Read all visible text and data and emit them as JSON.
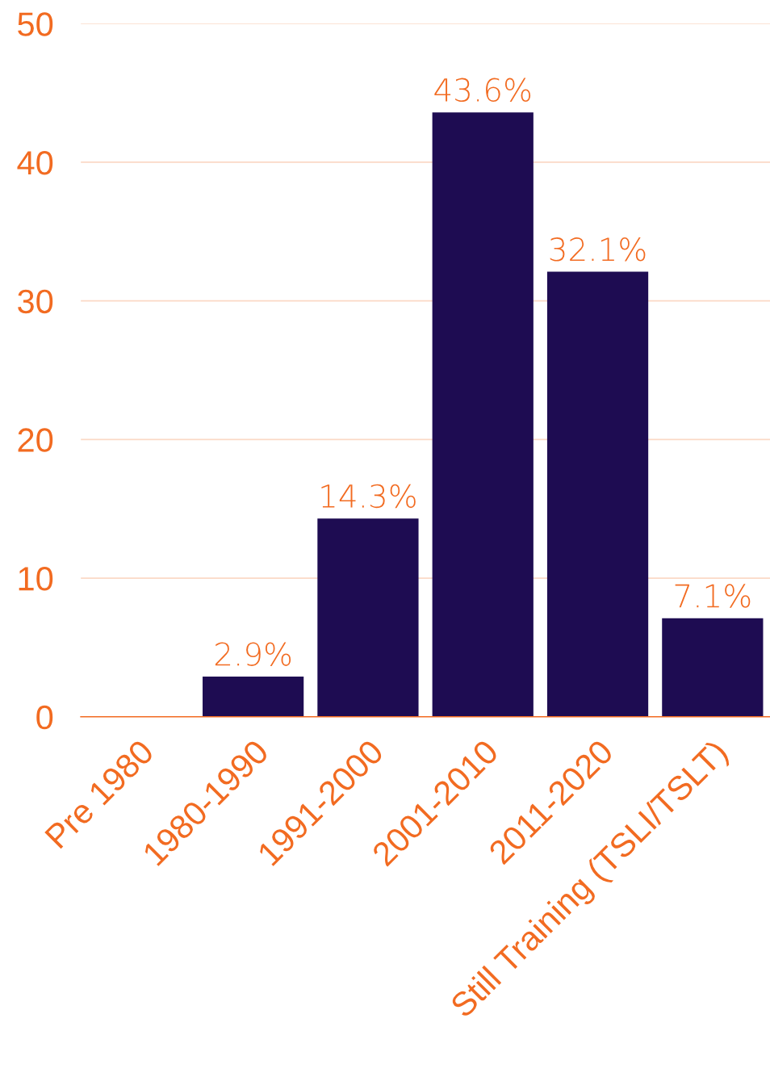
{
  "chart_data": {
    "type": "bar",
    "categories": [
      "Pre 1980",
      "1980-1990",
      "1991-2000",
      "2001-2010",
      "2011-2020",
      "Still Training (TSLI/TSLT)"
    ],
    "values": [
      0,
      2.9,
      14.3,
      43.6,
      32.1,
      7.1
    ],
    "value_labels": [
      null,
      "2.9%",
      "14.3%",
      "43.6%",
      "32.1%",
      "7.1%"
    ],
    "color": "#1e0c52",
    "ylim": [
      0,
      50
    ],
    "yticks": [
      0,
      10,
      20,
      30,
      40,
      50
    ],
    "grid": "y"
  }
}
